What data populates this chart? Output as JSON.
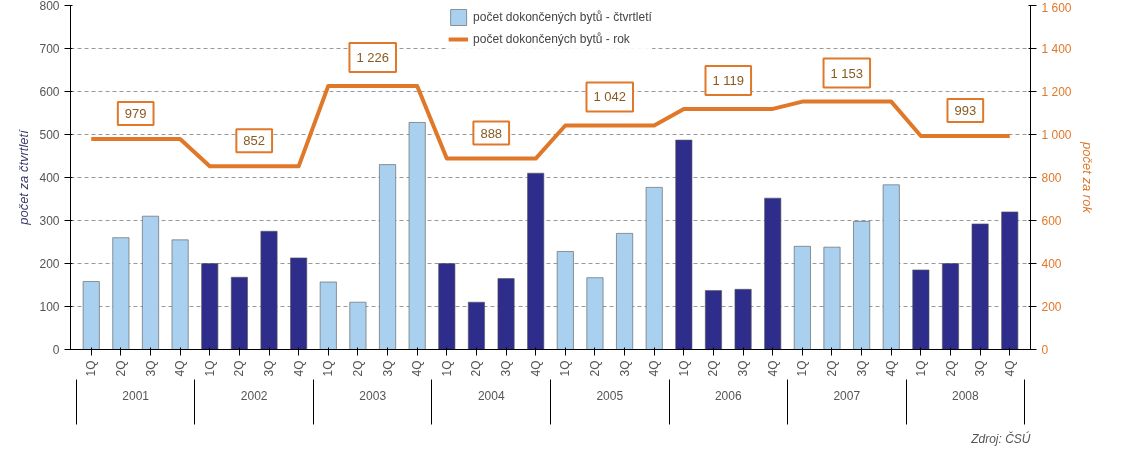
{
  "chart_data": {
    "type": "bar",
    "categories": [
      "1Q",
      "2Q",
      "3Q",
      "4Q",
      "1Q",
      "2Q",
      "3Q",
      "4Q",
      "1Q",
      "2Q",
      "3Q",
      "4Q",
      "1Q",
      "2Q",
      "3Q",
      "4Q",
      "1Q",
      "2Q",
      "3Q",
      "4Q",
      "1Q",
      "2Q",
      "3Q",
      "4Q",
      "1Q",
      "2Q",
      "3Q",
      "4Q",
      "1Q",
      "2Q",
      "3Q",
      "4Q"
    ],
    "series": [
      {
        "name": "počet dokončených bytů - čtvrtletí",
        "values": [
          158,
          260,
          310,
          255,
          200,
          168,
          275,
          213,
          157,
          110,
          430,
          528,
          200,
          110,
          165,
          410,
          228,
          167,
          270,
          377,
          487,
          137,
          140,
          352,
          240,
          238,
          298,
          383,
          185,
          200,
          292,
          320
        ],
        "colors": [
          "#a9d1ef",
          "#a9d1ef",
          "#a9d1ef",
          "#a9d1ef",
          "#2e2d8c",
          "#2e2d8c",
          "#2e2d8c",
          "#2e2d8c",
          "#a9d1ef",
          "#a9d1ef",
          "#a9d1ef",
          "#a9d1ef",
          "#2e2d8c",
          "#2e2d8c",
          "#2e2d8c",
          "#2e2d8c",
          "#a9d1ef",
          "#a9d1ef",
          "#a9d1ef",
          "#a9d1ef",
          "#2e2d8c",
          "#2e2d8c",
          "#2e2d8c",
          "#2e2d8c",
          "#a9d1ef",
          "#a9d1ef",
          "#a9d1ef",
          "#a9d1ef",
          "#2e2d8c",
          "#2e2d8c",
          "#2e2d8c",
          "#2e2d8c"
        ]
      },
      {
        "name": "počet dokončených bytů - rok",
        "type": "line",
        "axis": "y2",
        "color": "#e0782a",
        "values": [
          979,
          979,
          979,
          979,
          852,
          852,
          852,
          852,
          1226,
          1226,
          1226,
          1226,
          888,
          888,
          888,
          888,
          1042,
          1042,
          1042,
          1042,
          1119,
          1119,
          1119,
          1119,
          1153,
          1153,
          1153,
          1153,
          993,
          993,
          993,
          993
        ],
        "value_labels": [
          null,
          "979",
          null,
          null,
          null,
          "852",
          null,
          null,
          null,
          "1 226",
          null,
          null,
          null,
          "888",
          null,
          null,
          null,
          "1 042",
          null,
          null,
          null,
          "1 119",
          null,
          null,
          null,
          "1 153",
          null,
          null,
          null,
          "993",
          null,
          null
        ]
      }
    ],
    "ylabel": "počet za čtvrtletí",
    "y2label": "počet za rok",
    "ylim": [
      0,
      800
    ],
    "yticks": [
      0,
      100,
      200,
      300,
      400,
      500,
      600,
      700,
      800
    ],
    "y2lim": [
      0,
      1600
    ],
    "y2ticks": [
      0,
      200,
      400,
      600,
      {
        "value": 800,
        "label": "800"
      },
      {
        "value": 1000,
        "label": "1 000"
      },
      {
        "value": 1200,
        "label": "1 200"
      },
      {
        "value": 1400,
        "label": "1 400"
      },
      {
        "value": 1600,
        "label": "1 600"
      }
    ],
    "grid": "y",
    "legend": "top",
    "annotations": [
      "2001",
      "2002",
      "2003",
      "2004",
      "2005",
      "2006",
      "2007",
      "2008",
      "Zdroj: ČSÚ"
    ]
  }
}
